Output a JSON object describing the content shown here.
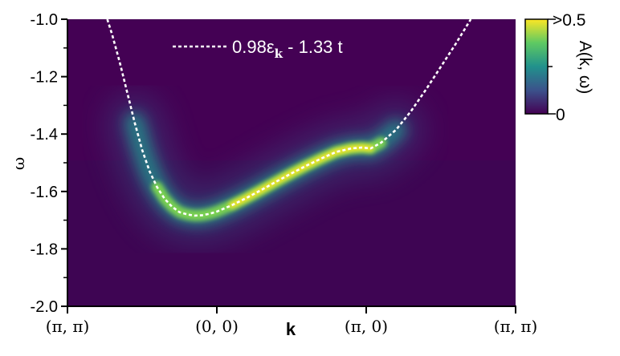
{
  "chart_data": {
    "type": "heatmap",
    "xlabel": "k",
    "ylabel": "ω",
    "ylim": [
      -2.0,
      -1.0
    ],
    "x_ticks": [
      "(π, π)",
      "(0, 0)",
      "(π, 0)",
      "(π, π)"
    ],
    "y_ticks": [
      {
        "value": -1.0,
        "label": "-1.0"
      },
      {
        "value": -1.2,
        "label": "-1.2"
      },
      {
        "value": -1.4,
        "label": "-1.4"
      },
      {
        "value": -1.6,
        "label": "-1.6"
      },
      {
        "value": -1.8,
        "label": "-1.8"
      },
      {
        "value": -2.0,
        "label": "-2.0"
      }
    ],
    "legend": {
      "placement": "top-center",
      "label_main": "0.98ε",
      "label_sub": "k",
      "label_rest": " - 1.33 t"
    },
    "colorbar": {
      "label": "A(k, ω)",
      "max_label": ">0.5",
      "min_label": "0",
      "range": [
        0,
        0.5
      ],
      "colormap": [
        "#440154",
        "#3b528b",
        "#21918c",
        "#5ec962",
        "#fde725"
      ]
    },
    "series": [
      {
        "type": "dashed-line",
        "color": "#ffffff",
        "points": [
          {
            "k": 0.2667,
            "w": -1.0
          },
          {
            "k": 0.3,
            "w": -1.055
          },
          {
            "k": 0.35,
            "w": -1.15
          },
          {
            "k": 0.4,
            "w": -1.255
          },
          {
            "k": 0.45,
            "w": -1.36
          },
          {
            "k": 0.5,
            "w": -1.455
          },
          {
            "k": 0.55,
            "w": -1.53
          },
          {
            "k": 0.6,
            "w": -1.585
          },
          {
            "k": 0.65,
            "w": -1.625
          },
          {
            "k": 0.7,
            "w": -1.653
          },
          {
            "k": 0.75,
            "w": -1.672
          },
          {
            "k": 0.8,
            "w": -1.68
          },
          {
            "k": 0.85,
            "w": -1.684
          },
          {
            "k": 0.9,
            "w": -1.683
          },
          {
            "k": 0.95,
            "w": -1.678
          },
          {
            "k": 1.0,
            "w": -1.67
          },
          {
            "k": 1.1,
            "w": -1.648
          },
          {
            "k": 1.2,
            "w": -1.622
          },
          {
            "k": 1.3,
            "w": -1.594
          },
          {
            "k": 1.4,
            "w": -1.565
          },
          {
            "k": 1.5,
            "w": -1.537
          },
          {
            "k": 1.6,
            "w": -1.51
          },
          {
            "k": 1.7,
            "w": -1.485
          },
          {
            "k": 1.8,
            "w": -1.462
          },
          {
            "k": 1.9,
            "w": -1.45
          },
          {
            "k": 1.97,
            "w": -1.447
          },
          {
            "k": 2.03,
            "w": -1.45
          },
          {
            "k": 2.1,
            "w": -1.43
          },
          {
            "k": 2.2,
            "w": -1.385
          },
          {
            "k": 2.3,
            "w": -1.32
          },
          {
            "k": 2.4,
            "w": -1.245
          },
          {
            "k": 2.5,
            "w": -1.165
          },
          {
            "k": 2.6,
            "w": -1.085
          },
          {
            "k": 2.7,
            "w": -1.0
          }
        ]
      }
    ],
    "intensity_peak": 0.5
  }
}
